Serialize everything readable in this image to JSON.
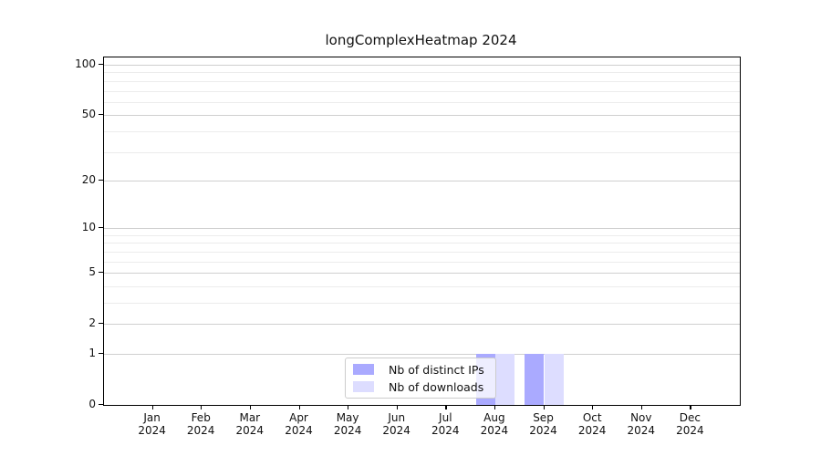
{
  "figure": {
    "title": "longComplexHeatmap 2024"
  },
  "chart_data": {
    "type": "bar",
    "title": "longComplexHeatmap 2024",
    "categories": [
      "Jan",
      "Feb",
      "Mar",
      "Apr",
      "May",
      "Jun",
      "Jul",
      "Aug",
      "Sep",
      "Oct",
      "Nov",
      "Dec"
    ],
    "category_year": "2024",
    "series": [
      {
        "name": "Nb of distinct IPs",
        "color": "#aaaaff",
        "values": [
          0,
          0,
          0,
          0,
          0,
          0,
          0,
          1,
          1,
          0,
          0,
          0
        ]
      },
      {
        "name": "Nb of downloads",
        "color": "#ddddff",
        "values": [
          0,
          0,
          0,
          0,
          0,
          0,
          0,
          1,
          1,
          0,
          0,
          0
        ]
      }
    ],
    "y_scale": "log10(1+x)",
    "y_major_ticks": [
      0,
      1,
      2,
      5,
      10,
      20,
      50,
      100
    ],
    "y_minor_ticks": [
      3,
      4,
      6,
      7,
      8,
      9,
      30,
      40,
      60,
      70,
      80,
      90
    ],
    "ylim": [
      0,
      110
    ],
    "grid": "on",
    "legend_position": "lower-center",
    "colors": {
      "major_grid": "#cfcfcf",
      "minor_grid": "#ececec",
      "axis": "#000000",
      "background": "#ffffff"
    }
  }
}
